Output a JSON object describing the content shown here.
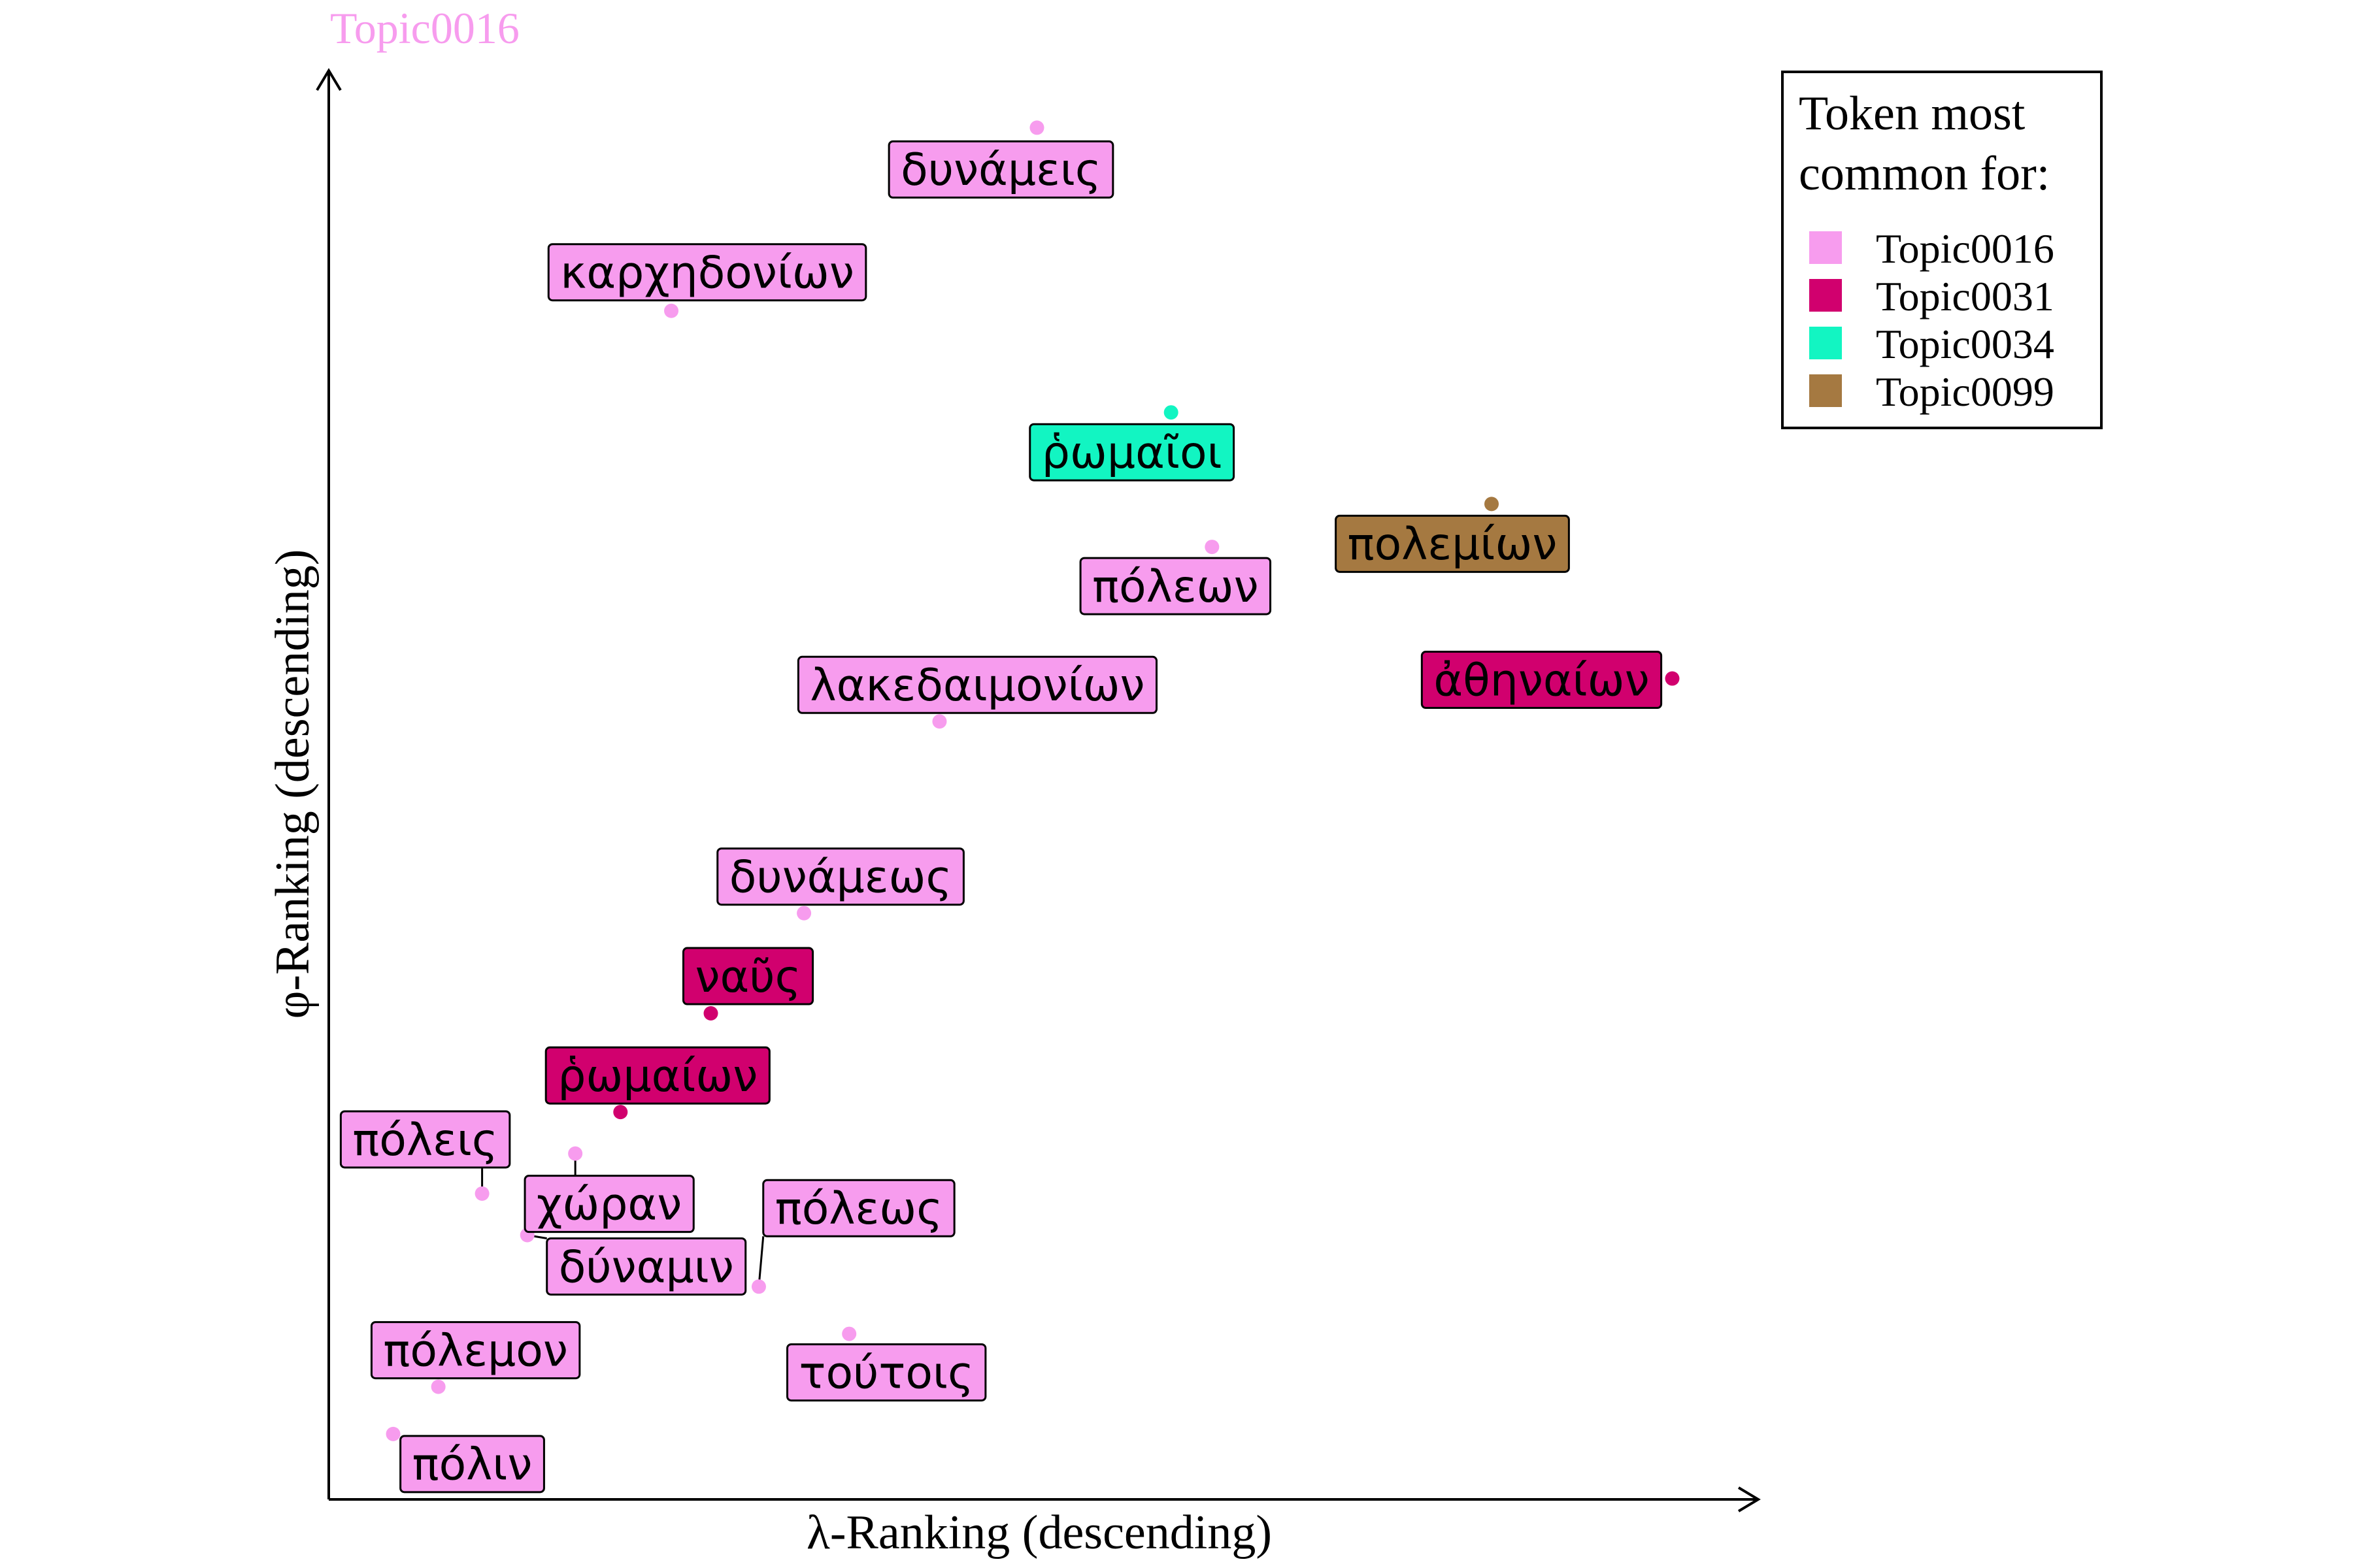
{
  "chart_data": {
    "type": "scatter",
    "title": "Topic0016",
    "title_color": "#f79cee",
    "xlabel": "λ-Ranking (descending)",
    "ylabel": "φ-Ranking (descending)",
    "xlim": [
      0,
      100
    ],
    "ylim": [
      0,
      100
    ],
    "grid": false,
    "axis_arrows": true,
    "legend": {
      "title_lines": [
        "Token most",
        "common for:"
      ],
      "placement": "top-right",
      "entries": [
        {
          "name": "Topic0016",
          "color": "#f79cee"
        },
        {
          "name": "Topic0031",
          "color": "#d1006e"
        },
        {
          "name": "Topic0034",
          "color": "#12f5c2"
        },
        {
          "name": "Topic0099",
          "color": "#a57941"
        }
      ]
    },
    "points": [
      {
        "label": "δυνάμεις",
        "x": 50.3,
        "y": 96.1,
        "topic": "Topic0016"
      },
      {
        "label": "καρχηδονίων",
        "x": 24.4,
        "y": 83.3,
        "topic": "Topic0016"
      },
      {
        "label": "ῥωμαῖοι",
        "x": 59.8,
        "y": 76.2,
        "topic": "Topic0034"
      },
      {
        "label": "πολεμίων",
        "x": 82.5,
        "y": 69.8,
        "topic": "Topic0099"
      },
      {
        "label": "πόλεων",
        "x": 62.7,
        "y": 66.8,
        "topic": "Topic0016"
      },
      {
        "label": "ἀθηναίων",
        "x": 95.3,
        "y": 57.6,
        "topic": "Topic0031"
      },
      {
        "label": "λακεδαιμονίων",
        "x": 43.4,
        "y": 54.6,
        "topic": "Topic0016"
      },
      {
        "label": "δυνάμεως",
        "x": 33.8,
        "y": 41.2,
        "topic": "Topic0016"
      },
      {
        "label": "ναῦς",
        "x": 27.2,
        "y": 34.2,
        "topic": "Topic0031"
      },
      {
        "label": "ῥωμαίων",
        "x": 20.8,
        "y": 27.3,
        "topic": "Topic0031"
      },
      {
        "label": "χώραν",
        "x": 17.6,
        "y": 24.4,
        "topic": "Topic0016"
      },
      {
        "label": "πόλεις",
        "x": 11.0,
        "y": 21.6,
        "topic": "Topic0016"
      },
      {
        "label": "δύναμιν",
        "x": 14.2,
        "y": 18.7,
        "topic": "Topic0016"
      },
      {
        "label": "πόλεως",
        "x": 30.6,
        "y": 15.1,
        "topic": "Topic0016"
      },
      {
        "label": "τούτοις",
        "x": 37.0,
        "y": 11.8,
        "topic": "Topic0016"
      },
      {
        "label": "πόλεμον",
        "x": 7.9,
        "y": 8.1,
        "topic": "Topic0016"
      },
      {
        "label": "πόλιν",
        "x": 4.7,
        "y": 4.8,
        "topic": "Topic0016"
      }
    ]
  }
}
